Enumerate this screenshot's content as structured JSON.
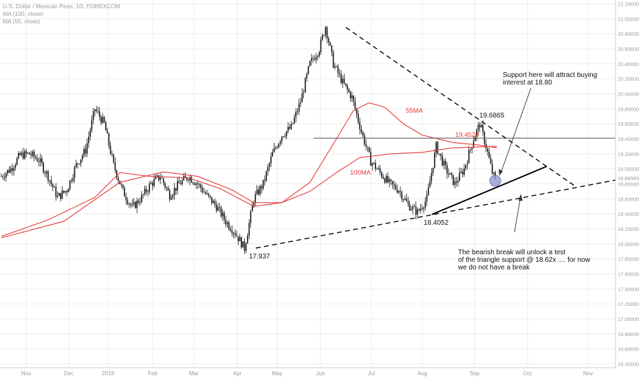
{
  "legend": {
    "line1": "U.S. Dollar / Mexican Peso, 1D, FOREXCOM",
    "line2": "MA (100, close)",
    "line3": "MA (55, close)"
  },
  "price_label": "18.88965",
  "annotations": {
    "high": "19.6865",
    "resistance": "19.4528",
    "low_july": "18.4052",
    "low_april": "17.937",
    "ma55": "55MA",
    "ma100": "100MA",
    "support_line1": "Support here will attract buying",
    "support_line2": "interest at 18.80",
    "break_line1": "The bearish break will unlock a test",
    "break_line2": "of the triangle support @ 18.62x .... for now",
    "break_line3": "we do not have a break"
  },
  "colors": {
    "ma": "#e53935",
    "candle": "#111111",
    "grid": "#eeeeee",
    "marker": "#8e9bd1"
  },
  "chart_data": {
    "type": "line",
    "title": "U.S. Dollar / Mexican Peso, 1D, FOREXCOM",
    "y_ticks": [
      "16.40000",
      "16.60000",
      "16.80000",
      "17.00000",
      "17.20000",
      "17.40000",
      "17.60000",
      "17.80000",
      "18.00000",
      "18.20000",
      "18.40000",
      "18.60000",
      "18.80000",
      "19.00000",
      "19.20000",
      "19.40000",
      "19.60000",
      "19.80000",
      "20.00000",
      "20.20000",
      "20.40000",
      "20.60000",
      "20.80000",
      "21.00000",
      "21.20000"
    ],
    "x_ticks": [
      "Nov",
      "Dec",
      "2018",
      "Feb",
      "Mar",
      "Apr",
      "May",
      "Jun",
      "Jul",
      "Aug",
      "Sep",
      "Oct",
      "Nov"
    ],
    "ylim": [
      16.35,
      21.25
    ],
    "xlim": [
      0,
      395
    ],
    "price_anchors": [
      [
        0,
        18.9
      ],
      [
        6,
        19.0
      ],
      [
        12,
        19.18
      ],
      [
        18,
        19.2
      ],
      [
        24,
        19.12
      ],
      [
        30,
        18.9
      ],
      [
        36,
        18.62
      ],
      [
        42,
        18.72
      ],
      [
        48,
        19.05
      ],
      [
        54,
        19.25
      ],
      [
        60,
        19.8
      ],
      [
        66,
        19.6
      ],
      [
        72,
        19.05
      ],
      [
        78,
        18.7
      ],
      [
        84,
        18.48
      ],
      [
        90,
        18.62
      ],
      [
        96,
        18.8
      ],
      [
        102,
        18.9
      ],
      [
        108,
        18.65
      ],
      [
        114,
        18.8
      ],
      [
        120,
        18.9
      ],
      [
        126,
        18.8
      ],
      [
        132,
        18.64
      ],
      [
        138,
        18.5
      ],
      [
        144,
        18.3
      ],
      [
        150,
        18.15
      ],
      [
        156,
        17.94
      ],
      [
        162,
        18.6
      ],
      [
        168,
        18.8
      ],
      [
        174,
        19.2
      ],
      [
        180,
        19.45
      ],
      [
        186,
        19.55
      ],
      [
        192,
        19.9
      ],
      [
        198,
        20.4
      ],
      [
        204,
        20.6
      ],
      [
        208,
        20.9
      ],
      [
        213,
        20.4
      ],
      [
        219,
        20.15
      ],
      [
        225,
        19.95
      ],
      [
        231,
        19.5
      ],
      [
        237,
        19.1
      ],
      [
        243,
        18.95
      ],
      [
        249,
        18.8
      ],
      [
        255,
        18.72
      ],
      [
        261,
        18.52
      ],
      [
        267,
        18.42
      ],
      [
        273,
        18.6
      ],
      [
        279,
        19.3
      ],
      [
        285,
        19.0
      ],
      [
        291,
        18.8
      ],
      [
        297,
        19.0
      ],
      [
        303,
        19.4
      ],
      [
        307,
        19.6
      ],
      [
        311,
        19.3
      ],
      [
        315,
        18.95
      ],
      [
        317,
        18.85
      ]
    ],
    "series": [
      {
        "name": "55MA",
        "points": [
          [
            0,
            18.1
          ],
          [
            30,
            18.32
          ],
          [
            60,
            18.62
          ],
          [
            76,
            18.95
          ],
          [
            95,
            18.9
          ],
          [
            120,
            18.88
          ],
          [
            140,
            18.74
          ],
          [
            162,
            18.5
          ],
          [
            180,
            18.55
          ],
          [
            198,
            18.82
          ],
          [
            215,
            19.4
          ],
          [
            226,
            19.78
          ],
          [
            236,
            19.88
          ],
          [
            246,
            19.82
          ],
          [
            258,
            19.6
          ],
          [
            270,
            19.45
          ],
          [
            290,
            19.35
          ],
          [
            305,
            19.32
          ],
          [
            318,
            19.28
          ]
        ]
      },
      {
        "name": "100MA",
        "points": [
          [
            0,
            18.08
          ],
          [
            40,
            18.3
          ],
          [
            76,
            18.82
          ],
          [
            104,
            18.96
          ],
          [
            126,
            18.9
          ],
          [
            148,
            18.72
          ],
          [
            162,
            18.55
          ],
          [
            180,
            18.55
          ],
          [
            198,
            18.7
          ],
          [
            215,
            18.95
          ],
          [
            230,
            19.15
          ],
          [
            250,
            19.2
          ],
          [
            270,
            19.22
          ],
          [
            290,
            19.28
          ],
          [
            318,
            19.3
          ]
        ]
      }
    ]
  }
}
